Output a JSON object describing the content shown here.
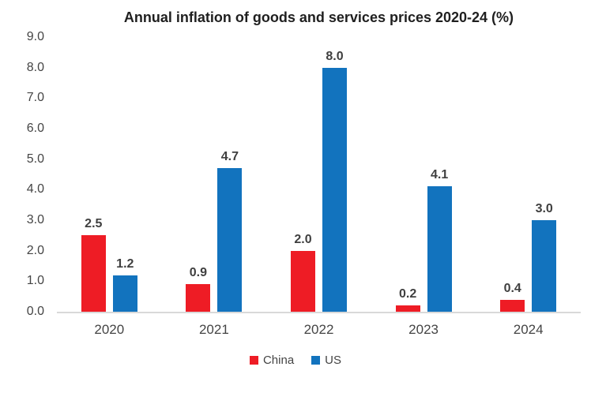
{
  "title": "Annual inflation of goods and services prices 2020-24 (%)",
  "legend": {
    "items": [
      {
        "label": "China",
        "color": "#ee1c25"
      },
      {
        "label": "US",
        "color": "#1273be"
      }
    ]
  },
  "chart_data": {
    "type": "bar",
    "title": "Annual inflation of goods and services prices 2020-24 (%)",
    "categories": [
      "2020",
      "2021",
      "2022",
      "2023",
      "2024"
    ],
    "series": [
      {
        "name": "China",
        "color": "#ee1c25",
        "values": [
          2.5,
          0.9,
          2.0,
          0.2,
          0.4
        ]
      },
      {
        "name": "US",
        "color": "#1273be",
        "values": [
          1.2,
          4.7,
          8.0,
          4.1,
          3.0
        ]
      }
    ],
    "xlabel": "",
    "ylabel": "",
    "ylim": [
      0,
      9
    ],
    "ytick_step": 1.0,
    "ytick_labels": [
      "0.0",
      "1.0",
      "2.0",
      "3.0",
      "4.0",
      "5.0",
      "6.0",
      "7.0",
      "8.0",
      "9.0"
    ],
    "value_labels": true,
    "grid": false,
    "legend_position": "bottom",
    "axis_line_color": "#d9d9d9"
  }
}
